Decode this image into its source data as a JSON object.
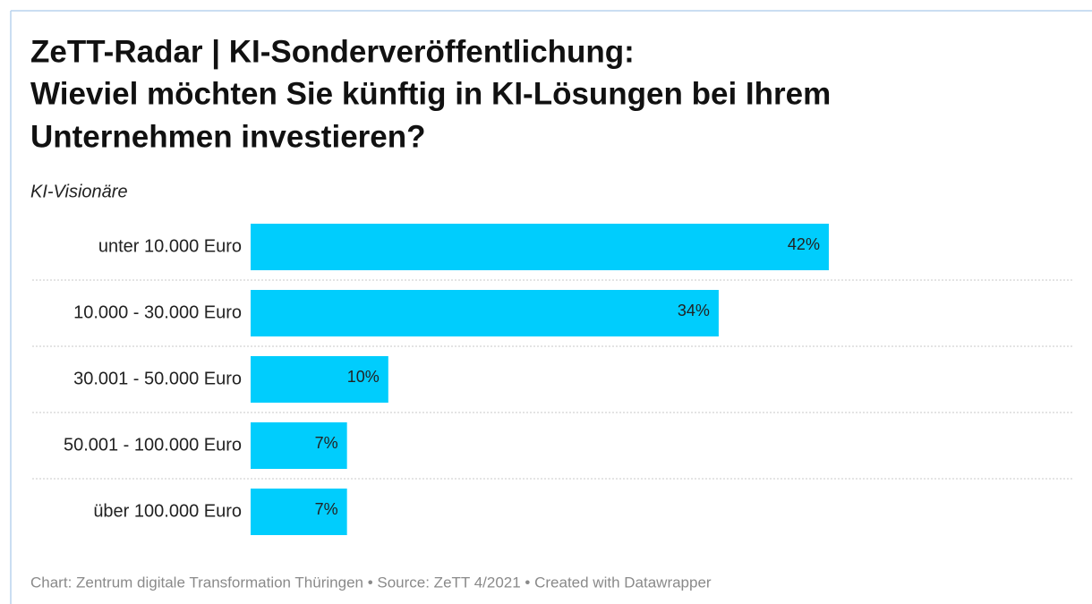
{
  "chart_data": {
    "type": "bar",
    "orientation": "horizontal",
    "title": [
      "ZeTT-Radar | KI-Sonderveröffentlichung:",
      "Wieviel möchten Sie künftig in KI-Lösungen bei Ihrem",
      "Unternehmen investieren?"
    ],
    "subtitle": "KI-Visionäre",
    "categories": [
      "unter 10.000 Euro",
      "10.000 - 30.000 Euro",
      "30.001 - 50.000 Euro",
      "50.001 - 100.000 Euro",
      "über 100.000 Euro"
    ],
    "values": [
      42,
      34,
      10,
      7,
      7
    ],
    "value_labels": [
      "42%",
      "34%",
      "10%",
      "7%",
      "7%"
    ],
    "color": "#00cdfd",
    "footer": "Chart: Zentrum digitale Transformation Thüringen • Source: ZeTT 4/2021 • Created with Datawrapper"
  }
}
